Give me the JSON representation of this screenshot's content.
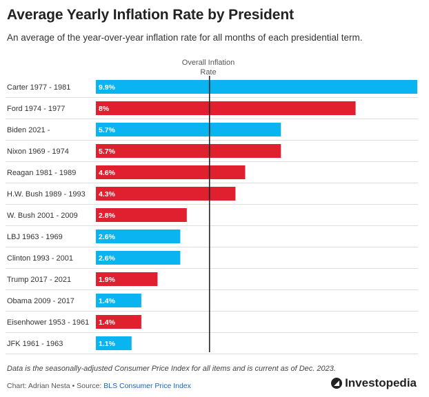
{
  "title": "Average Yearly Inflation Rate by President",
  "subtitle": "An average of the year-over-year inflation rate for all months of each presidential term.",
  "reference": {
    "label_line1": "Overall Inflation",
    "label_line2": "Rate",
    "value": 3.5
  },
  "note": "Data is the seasonally-adjusted Consumer Price Index for all items and is current as of Dec. 2023.",
  "source": {
    "prefix": "Chart: Adrian Nesta • Source: ",
    "link_text": "BLS Consumer Price Index"
  },
  "brand": "Investopedia",
  "colors": {
    "democrat": "#0ab4f0",
    "republican": "#e0202e",
    "reference": "#222222",
    "gridline": "#dddddd"
  },
  "chart_data": {
    "type": "bar",
    "orientation": "horizontal",
    "xlim": [
      0,
      9.9
    ],
    "categories": [
      "Carter 1977 - 1981",
      "Ford 1974 - 1977",
      "Biden 2021 -",
      "Nixon 1969 - 1974",
      "Reagan 1981 - 1989",
      "H.W. Bush 1989 - 1993",
      "W. Bush 2001 - 2009",
      "LBJ 1963 - 1969",
      "Clinton 1993 - 2001",
      "Trump 2017 - 2021",
      "Obama 2009 - 2017",
      "Eisenhower 1953 - 1961",
      "JFK 1961 - 1963"
    ],
    "values": [
      9.9,
      8,
      5.7,
      5.7,
      4.6,
      4.3,
      2.8,
      2.6,
      2.6,
      1.9,
      1.4,
      1.4,
      1.1
    ],
    "value_labels": [
      "9.9%",
      "8%",
      "5.7%",
      "5.7%",
      "4.6%",
      "4.3%",
      "2.8%",
      "2.6%",
      "2.6%",
      "1.9%",
      "1.4%",
      "1.4%",
      "1.1%"
    ],
    "bar_colors": [
      "democrat",
      "republican",
      "democrat",
      "republican",
      "republican",
      "republican",
      "republican",
      "democrat",
      "democrat",
      "republican",
      "democrat",
      "republican",
      "democrat"
    ],
    "reference_line": 3.5
  }
}
